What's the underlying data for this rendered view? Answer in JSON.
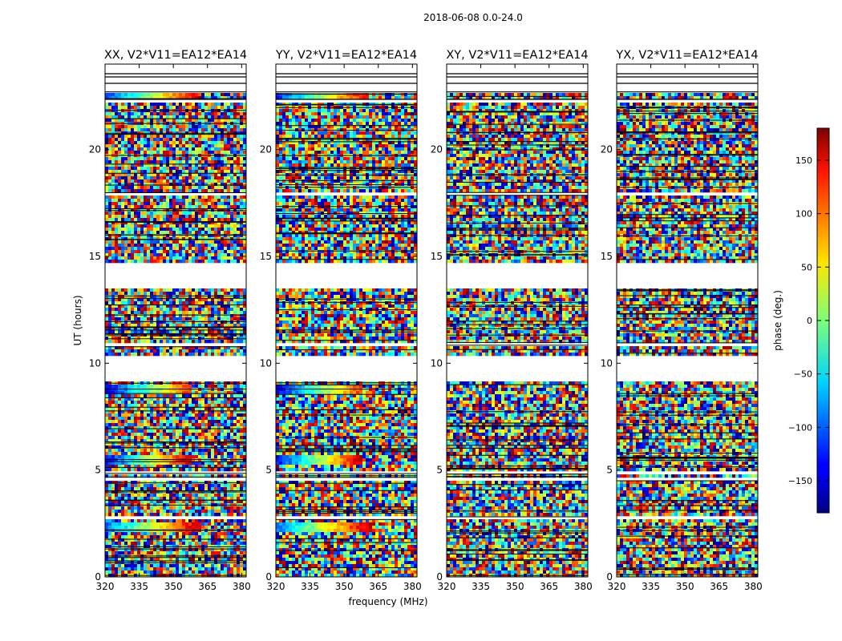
{
  "chart_data": {
    "type": "heatmap",
    "suptitle": "2018-06-08 0.0-24.0",
    "xlabel": "frequency (MHz)",
    "ylabel": "UT (hours)",
    "xlim": [
      320,
      382
    ],
    "ylim": [
      0,
      24
    ],
    "xticks": [
      320,
      335,
      350,
      365,
      380
    ],
    "xtick_labels": [
      "320",
      "335",
      "350",
      "365",
      "380"
    ],
    "yticks": [
      0,
      5,
      10,
      15,
      20
    ],
    "ytick_labels": [
      "0",
      "5",
      "10",
      "15",
      "20"
    ],
    "grid": false,
    "colormap": "jet",
    "colorbar": {
      "label": "phase (deg.)",
      "range": [
        -180,
        180
      ],
      "ticks": [
        -150,
        -100,
        -50,
        0,
        50,
        100,
        150
      ],
      "tick_labels": [
        "−150",
        "−100",
        "−50",
        "0",
        "50",
        "100",
        "150"
      ]
    },
    "panels": [
      {
        "title": "XX, V2*V11=EA12*EA14",
        "polarization": "XX"
      },
      {
        "title": "YY, V2*V11=EA12*EA14",
        "polarization": "YY"
      },
      {
        "title": "XY, V2*V11=EA12*EA14",
        "polarization": "XY"
      },
      {
        "title": "YX, V2*V11=EA12*EA14",
        "polarization": "YX"
      }
    ],
    "flagged_ut_ranges": [
      [
        1.45,
        1.55
      ],
      [
        2.7,
        2.8
      ],
      [
        3.0,
        3.05
      ],
      [
        4.55,
        4.65
      ],
      [
        4.85,
        5.0
      ],
      [
        7.5,
        7.55
      ],
      [
        9.1,
        10.4
      ],
      [
        10.85,
        10.95
      ],
      [
        13.45,
        14.75
      ],
      [
        15.1,
        15.2
      ],
      [
        17.9,
        17.95
      ],
      [
        22.2,
        22.35
      ],
      [
        22.7,
        23.1
      ],
      [
        23.4,
        23.55
      ],
      [
        23.7,
        24.0
      ]
    ],
    "coherent_phase_bands": [
      {
        "ut_range": [
          22.35,
          22.7
        ],
        "panels": [
          "XX",
          "YY"
        ],
        "phase_start_deg": -120,
        "phase_end_deg": 150,
        "freq_extent_mhz": [
          320,
          361
        ]
      },
      {
        "ut_range": [
          8.55,
          9.0
        ],
        "panels": [
          "XX",
          "YY"
        ],
        "phase_start_deg": -140,
        "phase_end_deg": 120,
        "freq_extent_mhz": [
          320,
          358
        ]
      },
      {
        "ut_range": [
          5.3,
          5.7
        ],
        "panels": [
          "XX",
          "YY"
        ],
        "phase_start_deg": -140,
        "phase_end_deg": 160,
        "freq_extent_mhz": [
          320,
          358
        ]
      },
      {
        "ut_range": [
          2.15,
          2.5
        ],
        "panels": [
          "XX",
          "YY"
        ],
        "phase_start_deg": -100,
        "phase_end_deg": 160,
        "freq_extent_mhz": [
          320,
          362
        ]
      }
    ]
  }
}
